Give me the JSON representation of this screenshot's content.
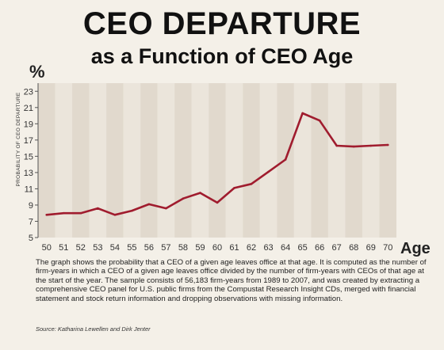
{
  "header": {
    "title": "CEO DEPARTURE",
    "subtitle": "as a Function of CEO Age"
  },
  "chart_data": {
    "type": "line",
    "y_unit_label": "%",
    "xlabel": "Age",
    "ylabel": "PROBABILITY OF CEO DEPARTURE",
    "x": [
      50,
      51,
      52,
      53,
      54,
      55,
      56,
      57,
      58,
      59,
      60,
      61,
      62,
      63,
      64,
      65,
      66,
      67,
      68,
      69,
      70
    ],
    "values": [
      7.8,
      8.0,
      8.0,
      8.6,
      7.8,
      8.3,
      9.1,
      8.6,
      9.8,
      10.5,
      9.3,
      11.1,
      11.6,
      13.1,
      14.6,
      20.3,
      19.4,
      16.3,
      16.2,
      16.3,
      16.4
    ],
    "xticks": [
      "50",
      "51",
      "52",
      "53",
      "54",
      "55",
      "56",
      "57",
      "58",
      "59",
      "60",
      "61",
      "62",
      "63",
      "64",
      "65",
      "66",
      "67",
      "68",
      "69",
      "70"
    ],
    "yticks": [
      "5",
      "7",
      "9",
      "11",
      "13",
      "15",
      "17",
      "19",
      "21",
      "23"
    ],
    "ylim": [
      5,
      24
    ],
    "grid": false,
    "colors": {
      "line": "#a01c2e",
      "band_dark": "#e1d9cd",
      "band_light": "#ebe5db",
      "axis": "#333333"
    }
  },
  "notes": {
    "description": "The graph shows the probability that a CEO of a given age leaves office at that age. It is computed as the number of firm-years in which a CEO of a given age leaves office divided by the number of firm-years with CEOs of that age at the start of the year. The sample consists of 56,183 firm-years from 1989 to 2007, and was created by extracting a comprehensive CEO panel for U.S. public firms from the Compustat Research Insight CDs, merged with financial statement and stock return information and dropping observations with missing information.",
    "source": "Source: Katharina Lewellen and Dirk Jenter"
  }
}
